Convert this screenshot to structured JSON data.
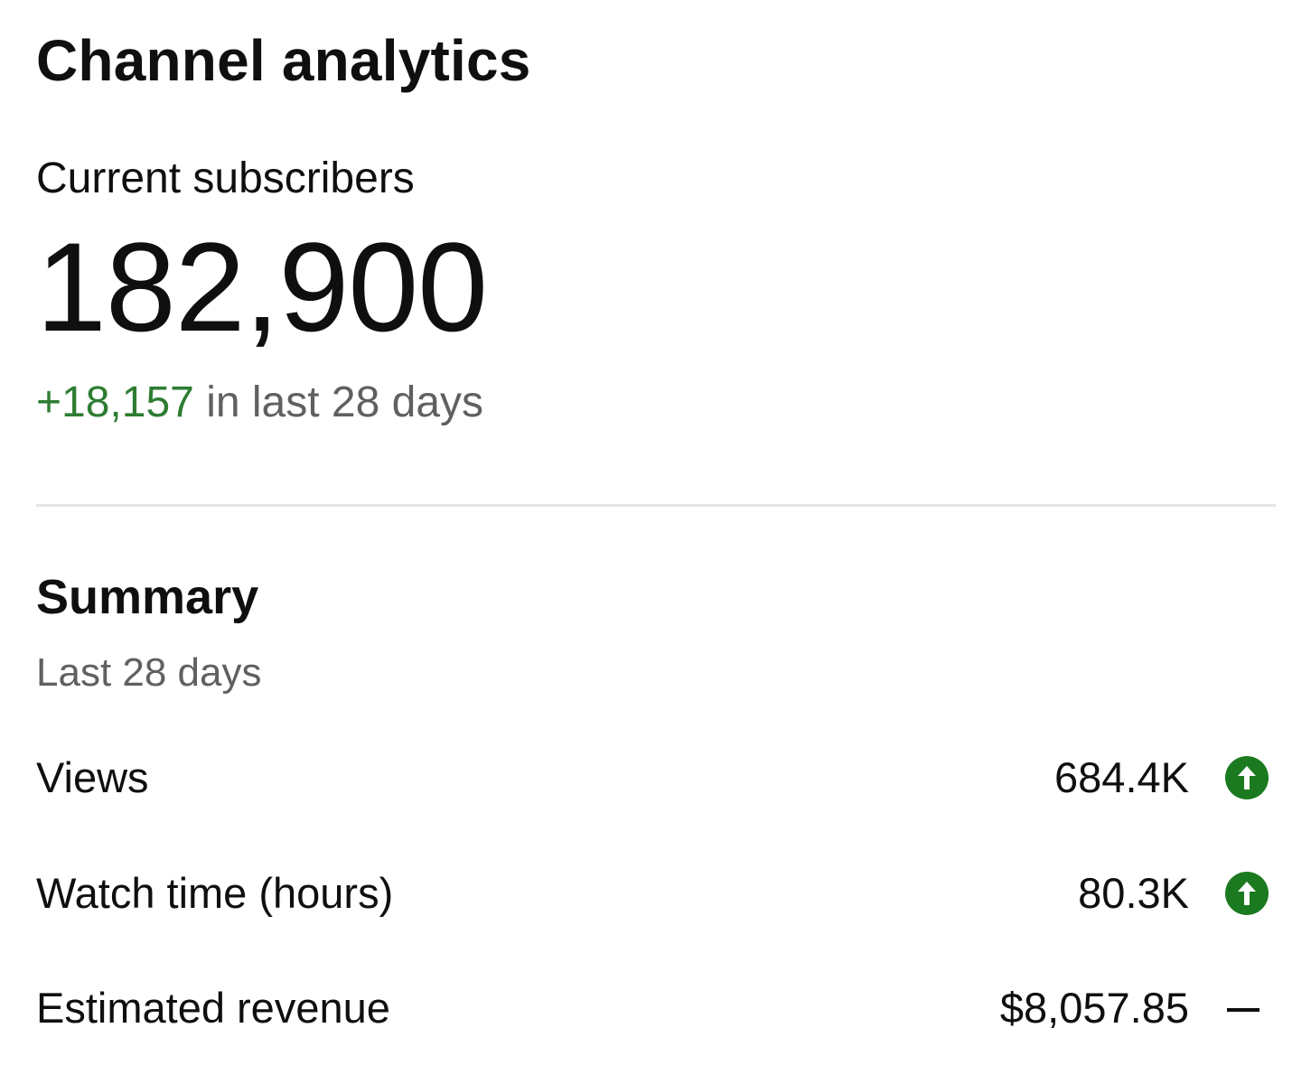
{
  "header": {
    "title": "Channel analytics"
  },
  "subscribers": {
    "label": "Current subscribers",
    "count": "182,900",
    "change": "+18,157",
    "change_period": "in last 28 days"
  },
  "summary": {
    "title": "Summary",
    "period": "Last 28 days",
    "metrics": [
      {
        "label": "Views",
        "value": "684.4K",
        "trend": "up",
        "trend_icon": "arrow-up-circle-icon"
      },
      {
        "label": "Watch time (hours)",
        "value": "80.3K",
        "trend": "up",
        "trend_icon": "arrow-up-circle-icon"
      },
      {
        "label": "Estimated revenue",
        "value": "$8,057.85",
        "trend": "flat",
        "trend_icon": "dash-icon"
      }
    ]
  },
  "colors": {
    "positive": "#2e7d32",
    "trend_up_icon": "#1b7a1f",
    "muted_text": "#606060",
    "divider": "#e5e5e5"
  }
}
